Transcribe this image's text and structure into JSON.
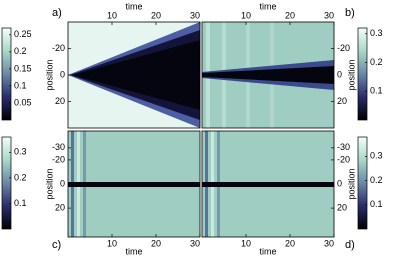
{
  "chart_data": [
    {
      "type": "heatmap",
      "label": "a)",
      "xlabel": "time",
      "ylabel": "position",
      "xlim": [
        0,
        30
      ],
      "xticks": [
        10,
        20,
        30
      ],
      "ylim": [
        -40,
        40
      ],
      "yticks": [
        -20,
        0,
        20
      ],
      "colorbar": {
        "lim": [
          0,
          0.27
        ],
        "ticks": [
          0.05,
          0.1,
          0.15,
          0.2,
          0.25
        ]
      }
    },
    {
      "type": "heatmap",
      "label": "b)",
      "xlabel": "time",
      "ylabel": "position",
      "xlim": [
        0,
        30
      ],
      "xticks": [
        10,
        20,
        30
      ],
      "ylim": [
        -40,
        40
      ],
      "yticks": [
        -20,
        0,
        20
      ],
      "colorbar": {
        "lim": [
          0,
          0.32
        ],
        "ticks": [
          0.1,
          0.2,
          0.3
        ]
      }
    },
    {
      "type": "heatmap",
      "label": "c)",
      "xlabel": "time",
      "ylabel": "position",
      "xlim": [
        0,
        30
      ],
      "xticks": [
        10,
        20,
        30
      ],
      "ylim": [
        -44,
        44
      ],
      "yticks": [
        -30,
        -20,
        0,
        20
      ],
      "colorbar": {
        "lim": [
          0,
          0.36
        ],
        "ticks": [
          0.1,
          0.2,
          0.3
        ]
      }
    },
    {
      "type": "heatmap",
      "label": "d)",
      "xlabel": "time",
      "ylabel": "position",
      "xlim": [
        0,
        30
      ],
      "xticks": [
        10,
        20,
        30
      ],
      "ylim": [
        -44,
        44
      ],
      "yticks": [
        -30,
        -20,
        0,
        20
      ],
      "colorbar": {
        "lim": [
          0,
          0.38
        ],
        "ticks": [
          0.1,
          0.2,
          0.3
        ]
      }
    }
  ]
}
